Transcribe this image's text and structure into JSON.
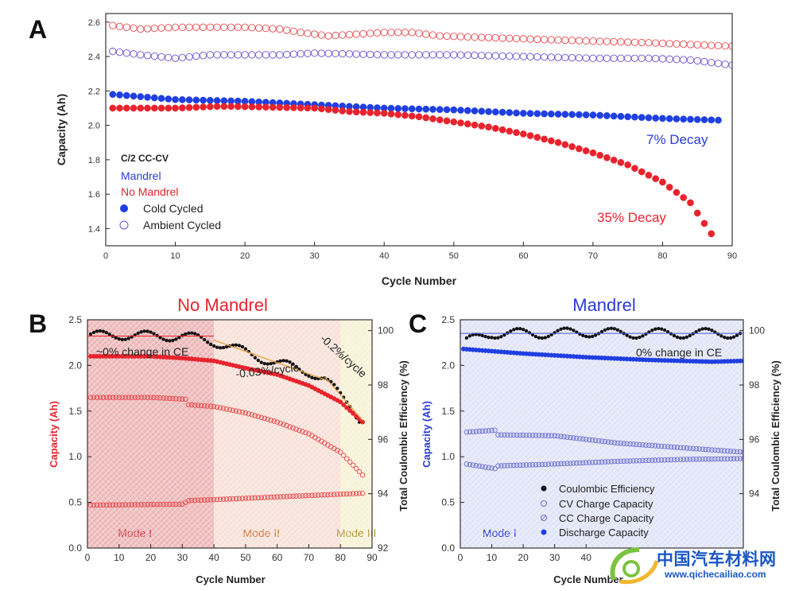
{
  "chart_data": [
    {
      "id": "A",
      "panel_label": "A",
      "type": "scatter",
      "xlabel": "Cycle Number",
      "ylabel": "Capacity (Ah)",
      "xlim": [
        0,
        90
      ],
      "ylim": [
        1.3,
        2.65
      ],
      "xticks": [
        0,
        10,
        20,
        30,
        40,
        50,
        60,
        70,
        80,
        90
      ],
      "yticks": [
        1.4,
        1.6,
        1.8,
        2.0,
        2.2,
        2.4,
        2.6
      ],
      "legend": {
        "title": "C/2 CC-CV",
        "mandrel_label": "Mandrel",
        "no_mandrel_label": "No Mandrel",
        "cold_label": "Cold Cycled",
        "ambient_label": "Ambient Cycled"
      },
      "annotations": {
        "mandrel_decay": "7% Decay",
        "no_mandrel_decay": "35% Decay"
      },
      "series": [
        {
          "name": "No Mandrel Ambient Cycled",
          "marker": "open",
          "color": "#e8484c",
          "x_range": [
            1,
            90
          ],
          "values": [
            [
              1,
              2.58
            ],
            [
              5,
              2.56
            ],
            [
              10,
              2.57
            ],
            [
              15,
              2.57
            ],
            [
              20,
              2.57
            ],
            [
              25,
              2.56
            ],
            [
              28,
              2.54
            ],
            [
              32,
              2.52
            ],
            [
              36,
              2.53
            ],
            [
              40,
              2.54
            ],
            [
              44,
              2.54
            ],
            [
              48,
              2.52
            ],
            [
              55,
              2.51
            ],
            [
              62,
              2.5
            ],
            [
              70,
              2.49
            ],
            [
              78,
              2.48
            ],
            [
              84,
              2.47
            ],
            [
              90,
              2.46
            ]
          ]
        },
        {
          "name": "Mandrel Ambient Cycled",
          "marker": "open",
          "color": "#6a4fd0",
          "x_range": [
            1,
            90
          ],
          "values": [
            [
              1,
              2.43
            ],
            [
              5,
              2.41
            ],
            [
              10,
              2.39
            ],
            [
              15,
              2.41
            ],
            [
              20,
              2.41
            ],
            [
              25,
              2.41
            ],
            [
              30,
              2.42
            ],
            [
              40,
              2.41
            ],
            [
              50,
              2.41
            ],
            [
              60,
              2.4
            ],
            [
              70,
              2.39
            ],
            [
              78,
              2.39
            ],
            [
              84,
              2.38
            ],
            [
              90,
              2.35
            ]
          ]
        },
        {
          "name": "Mandrel Cold Cycled",
          "marker": "filled",
          "color": "#1f3fe0",
          "x_range": [
            1,
            88
          ],
          "values": [
            [
              1,
              2.18
            ],
            [
              10,
              2.15
            ],
            [
              20,
              2.14
            ],
            [
              30,
              2.12
            ],
            [
              40,
              2.1
            ],
            [
              50,
              2.09
            ],
            [
              60,
              2.07
            ],
            [
              70,
              2.06
            ],
            [
              80,
              2.04
            ],
            [
              88,
              2.03
            ]
          ]
        },
        {
          "name": "No Mandrel Cold Cycled",
          "marker": "filled",
          "color": "#e8232d",
          "x_range": [
            1,
            87
          ],
          "values": [
            [
              1,
              2.1
            ],
            [
              10,
              2.1
            ],
            [
              16,
              2.11
            ],
            [
              18,
              2.11
            ],
            [
              30,
              2.1
            ],
            [
              35,
              2.08
            ],
            [
              40,
              2.07
            ],
            [
              45,
              2.05
            ],
            [
              50,
              2.02
            ],
            [
              55,
              1.99
            ],
            [
              60,
              1.95
            ],
            [
              65,
              1.9
            ],
            [
              70,
              1.84
            ],
            [
              75,
              1.77
            ],
            [
              80,
              1.67
            ],
            [
              84,
              1.55
            ],
            [
              87,
              1.37
            ]
          ]
        }
      ]
    },
    {
      "id": "B",
      "panel_label": "B",
      "type": "scatter",
      "title": "No Mandrel",
      "xlabel": "Cycle Number",
      "ylabel": "Capacity (Ah)",
      "y2label": "Total Coulombic Efficiency (%)",
      "xlim": [
        0,
        90
      ],
      "ylim": [
        0,
        2.5
      ],
      "y2lim": [
        92,
        100.4
      ],
      "xticks": [
        0,
        10,
        20,
        30,
        40,
        50,
        60,
        70,
        80,
        90
      ],
      "yticks": [
        0.0,
        0.5,
        1.0,
        1.5,
        2.0,
        2.5
      ],
      "y2ticks": [
        92,
        94,
        96,
        98,
        100
      ],
      "modes": [
        {
          "label": "Mode I",
          "x0": 0,
          "x1": 40,
          "color": "#e07d7d"
        },
        {
          "label": "Mode II",
          "x0": 40,
          "x1": 80,
          "color": "#f0c9b8"
        },
        {
          "label": "Mode III",
          "x0": 80,
          "x1": 90,
          "color": "#f2e8b5"
        }
      ],
      "annotations": {
        "ce_flat": "~0% change in CE",
        "slope_mode2": "-0.03%/cycle",
        "slope_mode3": "-0.2%/cycle"
      },
      "series": [
        {
          "name": "Coulombic Efficiency",
          "axis": "y2",
          "marker": "filled",
          "color": "#111111",
          "x_range": [
            1,
            86
          ],
          "values": [
            [
              1,
              99.8
            ],
            [
              10,
              99.85
            ],
            [
              20,
              99.8
            ],
            [
              30,
              99.8
            ],
            [
              40,
              99.6
            ],
            [
              50,
              99.2
            ],
            [
              60,
              98.8
            ],
            [
              70,
              98.5
            ],
            [
              75,
              98.2
            ],
            [
              80,
              97.6
            ],
            [
              83,
              97.3
            ],
            [
              86,
              96.8
            ]
          ]
        },
        {
          "name": "Discharge Capacity",
          "axis": "y",
          "marker": "filled",
          "color": "#e8232d",
          "x_range": [
            1,
            87
          ],
          "values": [
            [
              1,
              2.1
            ],
            [
              20,
              2.1
            ],
            [
              30,
              2.08
            ],
            [
              40,
              2.05
            ],
            [
              50,
              1.97
            ],
            [
              60,
              1.9
            ],
            [
              70,
              1.78
            ],
            [
              80,
              1.6
            ],
            [
              87,
              1.38
            ]
          ]
        },
        {
          "name": "CV Charge Capacity",
          "axis": "y",
          "marker": "open",
          "color": "#e8484c",
          "x_range": [
            1,
            87
          ],
          "values": [
            [
              1,
              1.65
            ],
            [
              20,
              1.65
            ],
            [
              31,
              1.63
            ],
            [
              32,
              1.57
            ],
            [
              40,
              1.55
            ],
            [
              50,
              1.48
            ],
            [
              60,
              1.38
            ],
            [
              70,
              1.25
            ],
            [
              80,
              1.05
            ],
            [
              87,
              0.8
            ]
          ]
        },
        {
          "name": "CC Charge Capacity",
          "axis": "y",
          "marker": "open",
          "color": "#e8484c",
          "x_range": [
            1,
            87
          ],
          "values": [
            [
              1,
              0.47
            ],
            [
              30,
              0.48
            ],
            [
              32,
              0.52
            ],
            [
              40,
              0.53
            ],
            [
              60,
              0.56
            ],
            [
              80,
              0.59
            ],
            [
              87,
              0.6
            ]
          ]
        }
      ]
    },
    {
      "id": "C",
      "panel_label": "C",
      "type": "scatter",
      "title": "Mandrel",
      "xlabel": "Cycle Number",
      "ylabel": "Capacity (Ah)",
      "y2label": "Total Coulombic Efficiency (%)",
      "xlim": [
        0,
        90
      ],
      "ylim": [
        0,
        2.5
      ],
      "y2lim": [
        92,
        100.4
      ],
      "xticks": [
        0,
        10,
        20,
        30,
        40
      ],
      "yticks": [
        0.0,
        0.5,
        1.0,
        1.5,
        2.0,
        2.5
      ],
      "y2ticks": [
        94,
        96,
        98,
        100
      ],
      "modes": [
        {
          "label": "Mode I",
          "x0": 0,
          "x1": 90,
          "color": "#c9cdf0"
        }
      ],
      "annotations": {
        "ce_flat": "0% change in CE"
      },
      "legend_entries": [
        "Coulombic Efficiency",
        "CV Charge Capacity",
        "CC Charge Capacity",
        "Discharge Capacity"
      ],
      "series": [
        {
          "name": "Coulombic Efficiency",
          "axis": "y2",
          "marker": "filled",
          "color": "#111111",
          "x_range": [
            2,
            89
          ],
          "values": [
            [
              2,
              99.6
            ],
            [
              10,
              99.9
            ],
            [
              20,
              99.9
            ],
            [
              30,
              99.9
            ],
            [
              40,
              99.95
            ],
            [
              50,
              99.9
            ],
            [
              60,
              99.9
            ],
            [
              70,
              99.9
            ],
            [
              80,
              99.9
            ],
            [
              89,
              99.9
            ]
          ]
        },
        {
          "name": "Discharge Capacity",
          "axis": "y",
          "marker": "filled",
          "color": "#1f3fe0",
          "x_range": [
            1,
            90
          ],
          "values": [
            [
              1,
              2.18
            ],
            [
              20,
              2.13
            ],
            [
              40,
              2.09
            ],
            [
              60,
              2.06
            ],
            [
              80,
              2.04
            ],
            [
              90,
              2.05
            ]
          ]
        },
        {
          "name": "CV Charge Capacity",
          "axis": "y",
          "marker": "open",
          "color": "#6a6fd0",
          "x_range": [
            2,
            90
          ],
          "values": [
            [
              2,
              1.27
            ],
            [
              11,
              1.29
            ],
            [
              12,
              1.24
            ],
            [
              30,
              1.23
            ],
            [
              50,
              1.15
            ],
            [
              70,
              1.1
            ],
            [
              90,
              1.05
            ]
          ]
        },
        {
          "name": "CC Charge Capacity",
          "axis": "y",
          "marker": "open",
          "color": "#6a6fd0",
          "x_range": [
            2,
            90
          ],
          "values": [
            [
              2,
              0.92
            ],
            [
              11,
              0.87
            ],
            [
              12,
              0.9
            ],
            [
              30,
              0.92
            ],
            [
              50,
              0.95
            ],
            [
              70,
              0.97
            ],
            [
              90,
              0.98
            ]
          ]
        }
      ]
    }
  ],
  "watermark": {
    "text": "中国汽车材料网",
    "url": "www.qichecailiao.com"
  }
}
